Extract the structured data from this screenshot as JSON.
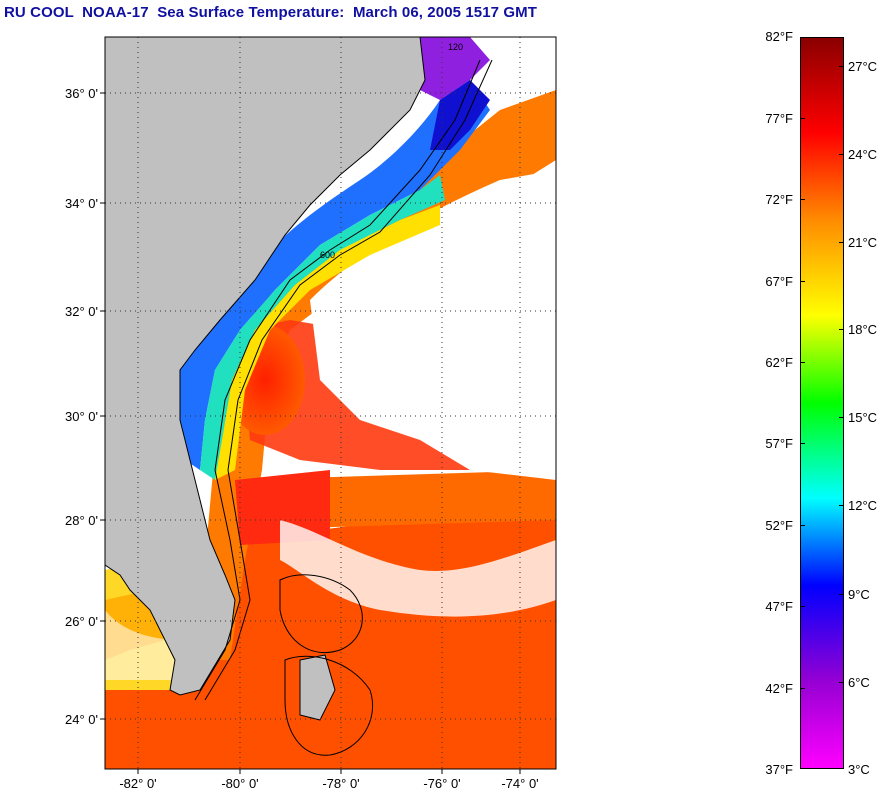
{
  "title": "RU COOL  NOAA-17  Sea Surface Temperature:  March 06, 2005 1517 GMT",
  "latitude_labels": [
    "36° 0'",
    "34° 0'",
    "32° 0'",
    "30° 0'",
    "28° 0'",
    "26° 0'",
    "24° 0'"
  ],
  "longitude_labels": [
    "-82° 0'",
    "-80° 0'",
    "-78° 0'",
    "-76° 0'",
    "-74° 0'"
  ],
  "contour_labels": [
    "120",
    "600"
  ],
  "colorbar": {
    "fahrenheit": [
      "82°F",
      "77°F",
      "72°F",
      "67°F",
      "62°F",
      "57°F",
      "52°F",
      "47°F",
      "42°F",
      "37°F"
    ],
    "celsius": [
      "27°C",
      "24°C",
      "21°C",
      "18°C",
      "15°C",
      "12°C",
      "9°C",
      "6°C",
      "3°C"
    ],
    "colors": [
      "#8b0000",
      "#ff0000",
      "#ff8c00",
      "#ffff00",
      "#00ff00",
      "#00ffff",
      "#0000ff",
      "#9400d3",
      "#ff00ff"
    ]
  },
  "land_color": "#c0c0c0"
}
